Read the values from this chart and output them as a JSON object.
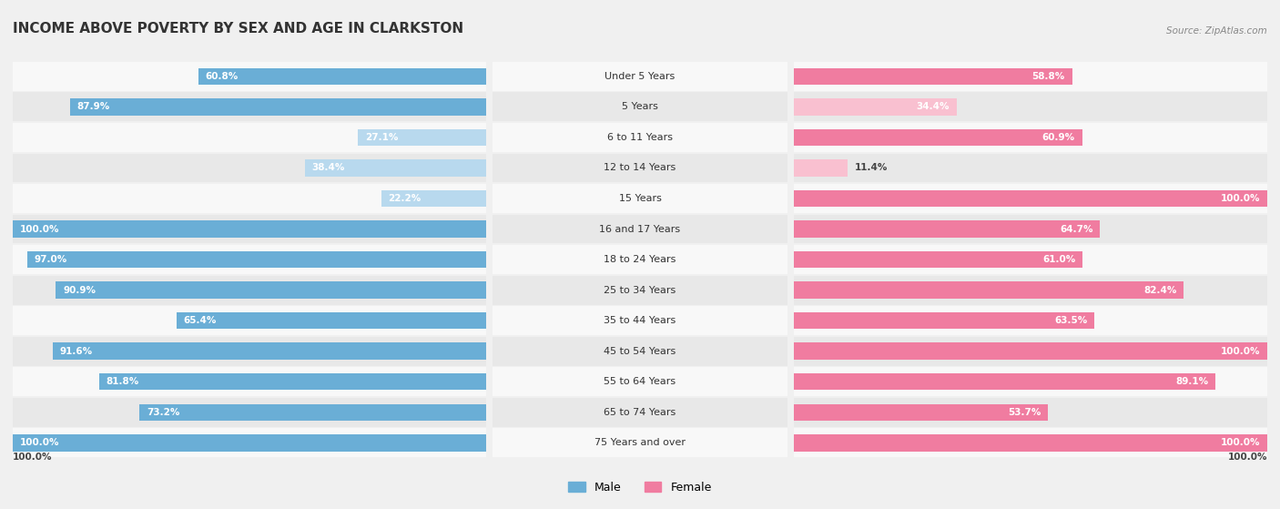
{
  "title": "INCOME ABOVE POVERTY BY SEX AND AGE IN CLARKSTON",
  "source": "Source: ZipAtlas.com",
  "categories": [
    "Under 5 Years",
    "5 Years",
    "6 to 11 Years",
    "12 to 14 Years",
    "15 Years",
    "16 and 17 Years",
    "18 to 24 Years",
    "25 to 34 Years",
    "35 to 44 Years",
    "45 to 54 Years",
    "55 to 64 Years",
    "65 to 74 Years",
    "75 Years and over"
  ],
  "male_values": [
    60.8,
    87.9,
    27.1,
    38.4,
    22.2,
    100.0,
    97.0,
    90.9,
    65.4,
    91.6,
    81.8,
    73.2,
    100.0
  ],
  "female_values": [
    58.8,
    34.4,
    60.9,
    11.4,
    100.0,
    64.7,
    61.0,
    82.4,
    63.5,
    100.0,
    89.1,
    53.7,
    100.0
  ],
  "male_color": "#6aaed6",
  "female_color": "#f07ca0",
  "male_color_light": "#b8d9ee",
  "female_color_light": "#f9c0d0",
  "background_color": "#f0f0f0",
  "row_bg_even": "#f8f8f8",
  "row_bg_odd": "#e8e8e8",
  "bar_height": 0.55,
  "title_fontsize": 11,
  "label_fontsize": 8,
  "value_fontsize": 7.5,
  "legend_fontsize": 9,
  "footer_value_left": "100.0%",
  "footer_value_right": "100.0%"
}
